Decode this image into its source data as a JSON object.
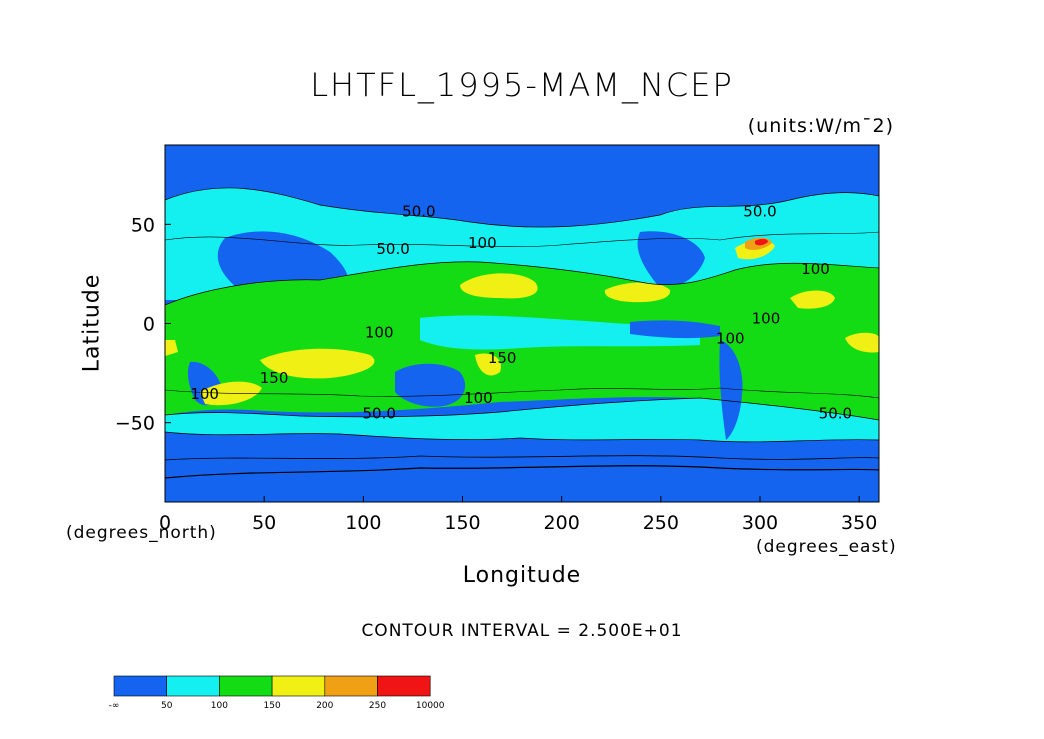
{
  "title": "LHTFL_1995-MAM_NCEP",
  "units_note": "(units:W/m¯2)",
  "contour_note": "CONTOUR INTERVAL = 2.500E+01",
  "chart_data": {
    "type": "heatmap",
    "title": "LHTFL_1995-MAM_NCEP",
    "units": "(units:W/m¯2)",
    "xlabel": "Longitude",
    "ylabel": "Latitude",
    "x_units_label": "(degrees_east)",
    "y_units_label": "(degrees_north)",
    "xlim": [
      0,
      360
    ],
    "ylim": [
      -90,
      90
    ],
    "x_ticks": [
      0,
      50,
      100,
      150,
      200,
      250,
      300,
      350
    ],
    "y_ticks": [
      -50,
      0,
      50
    ],
    "contour_interval": "2.500E+01",
    "colorbar": {
      "labels": [
        "-∞",
        "50",
        "100",
        "150",
        "200",
        "250",
        "10000"
      ],
      "colors": [
        "#1464f0",
        "#14f0f0",
        "#14dc14",
        "#f0f014",
        "#f0a014",
        "#f01414"
      ]
    },
    "contour_labels": [
      {
        "text": "50.0",
        "lon": 128,
        "lat": 54
      },
      {
        "text": "50.0",
        "lon": 115,
        "lat": 35
      },
      {
        "text": "100",
        "lon": 160,
        "lat": 38
      },
      {
        "text": "50.0",
        "lon": 300,
        "lat": 54
      },
      {
        "text": "100",
        "lon": 328,
        "lat": 25
      },
      {
        "text": "100",
        "lon": 303,
        "lat": 0
      },
      {
        "text": "100",
        "lon": 108,
        "lat": -7
      },
      {
        "text": "100",
        "lon": 285,
        "lat": -10
      },
      {
        "text": "150",
        "lon": 170,
        "lat": -20
      },
      {
        "text": "150",
        "lon": 55,
        "lat": -30
      },
      {
        "text": "100",
        "lon": 20,
        "lat": -38
      },
      {
        "text": "100",
        "lon": 158,
        "lat": -40
      },
      {
        "text": "50.0",
        "lon": 108,
        "lat": -48
      },
      {
        "text": "50.0",
        "lon": 338,
        "lat": -48
      }
    ]
  }
}
